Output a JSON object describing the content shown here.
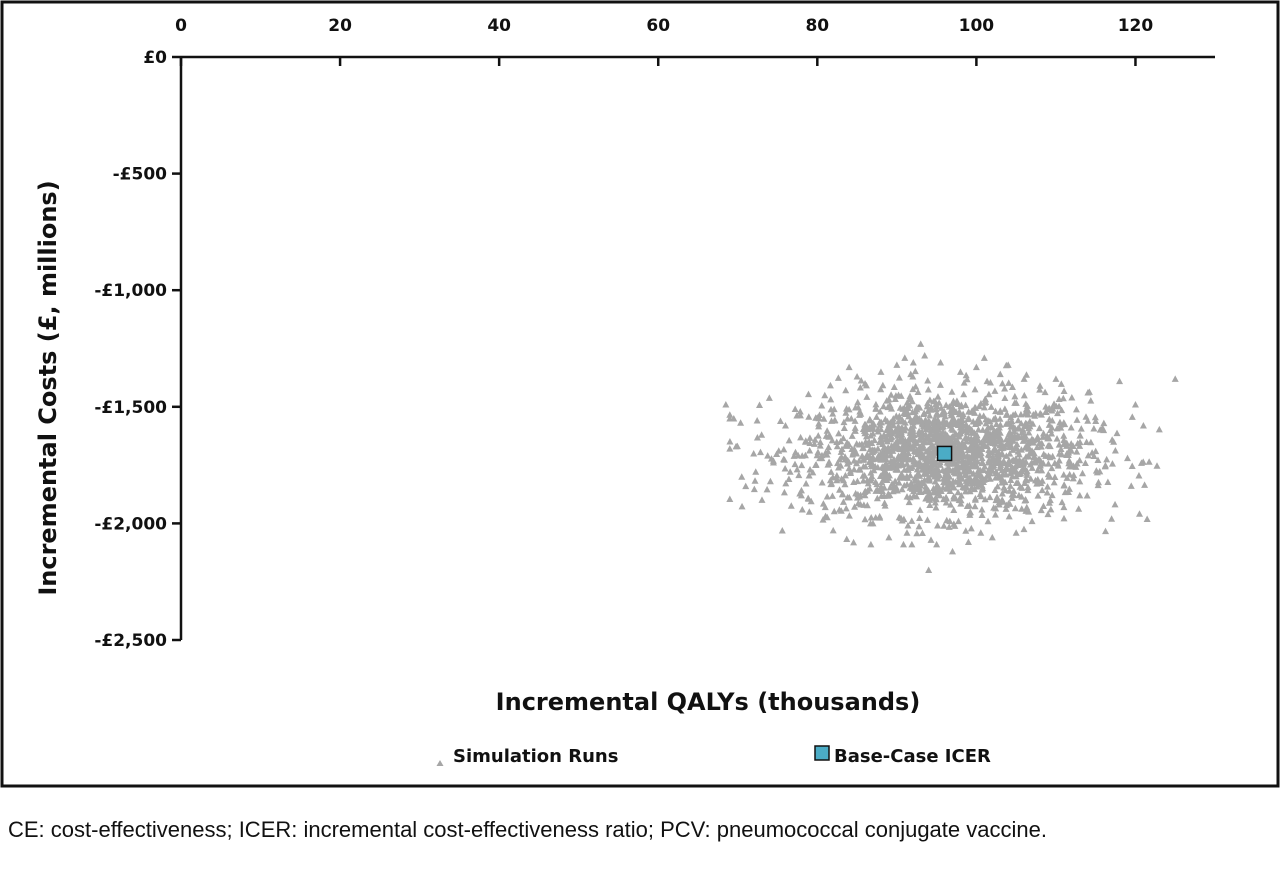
{
  "chart_data": {
    "type": "scatter",
    "xlabel": "Incremental QALYs (thousands)",
    "ylabel": "Incremental Costs (£, millions)",
    "xlim": [
      0,
      130
    ],
    "ylim": [
      -2500,
      0
    ],
    "x_ticks": [
      0,
      20,
      40,
      60,
      80,
      100,
      120
    ],
    "x_tick_labels": [
      "0",
      "20",
      "40",
      "60",
      "80",
      "100",
      "120"
    ],
    "y_ticks": [
      0,
      -500,
      -1000,
      -1500,
      -2000,
      -2500
    ],
    "y_tick_labels": [
      "£0",
      "-£500",
      "-£1,000",
      "-£1,500",
      "-£2,000",
      "-£2,500"
    ],
    "x_axis_position": "top",
    "grid": false,
    "legend_position": "bottom",
    "series": [
      {
        "name": "Simulation Runs",
        "color": "#a6a6a6",
        "marker": "triangle",
        "n_points": 1800,
        "center": [
          96,
          -1700
        ],
        "spread": [
          9,
          130
        ],
        "points": [
          [
            68.5,
            -1490
          ],
          [
            69.5,
            -1550
          ],
          [
            70.5,
            -1800
          ],
          [
            71,
            -1840
          ],
          [
            72,
            -1700
          ],
          [
            73,
            -1620
          ],
          [
            76,
            -1580
          ],
          [
            78,
            -1880
          ],
          [
            79,
            -1950
          ],
          [
            81,
            -1930
          ],
          [
            82,
            -2030
          ],
          [
            84,
            -1330
          ],
          [
            85,
            -1370
          ],
          [
            86,
            -1400
          ],
          [
            87,
            -2000
          ],
          [
            88,
            -1350
          ],
          [
            89,
            -2060
          ],
          [
            90,
            -1320
          ],
          [
            91,
            -1290
          ],
          [
            92,
            -1370
          ],
          [
            93,
            -1230
          ],
          [
            93.5,
            -1280
          ],
          [
            94,
            -2200
          ],
          [
            95,
            -2090
          ],
          [
            95.5,
            -1310
          ],
          [
            97,
            -2120
          ],
          [
            98,
            -1350
          ],
          [
            99,
            -2080
          ],
          [
            100,
            -1330
          ],
          [
            101,
            -1290
          ],
          [
            102,
            -2060
          ],
          [
            103,
            -1360
          ],
          [
            104,
            -1320
          ],
          [
            105,
            -2040
          ],
          [
            106,
            -1380
          ],
          [
            107,
            -1990
          ],
          [
            108,
            -1410
          ],
          [
            109,
            -1960
          ],
          [
            110,
            -1380
          ],
          [
            111,
            -1930
          ],
          [
            112,
            -1460
          ],
          [
            113,
            -1880
          ],
          [
            114,
            -1560
          ],
          [
            115,
            -1690
          ],
          [
            116,
            -1600
          ],
          [
            117,
            -1980
          ],
          [
            118,
            -1390
          ],
          [
            119,
            -1720
          ],
          [
            120,
            -1490
          ],
          [
            121,
            -1580
          ],
          [
            125,
            -1380
          ]
        ]
      },
      {
        "name": "Base-Case ICER",
        "color": "#4bacc6",
        "marker": "square",
        "points": [
          [
            96,
            -1700
          ]
        ]
      }
    ]
  },
  "caption": "CE: cost-effectiveness; ICER: incremental cost-effectiveness ratio; PCV: pneumococcal conjugate vaccine."
}
